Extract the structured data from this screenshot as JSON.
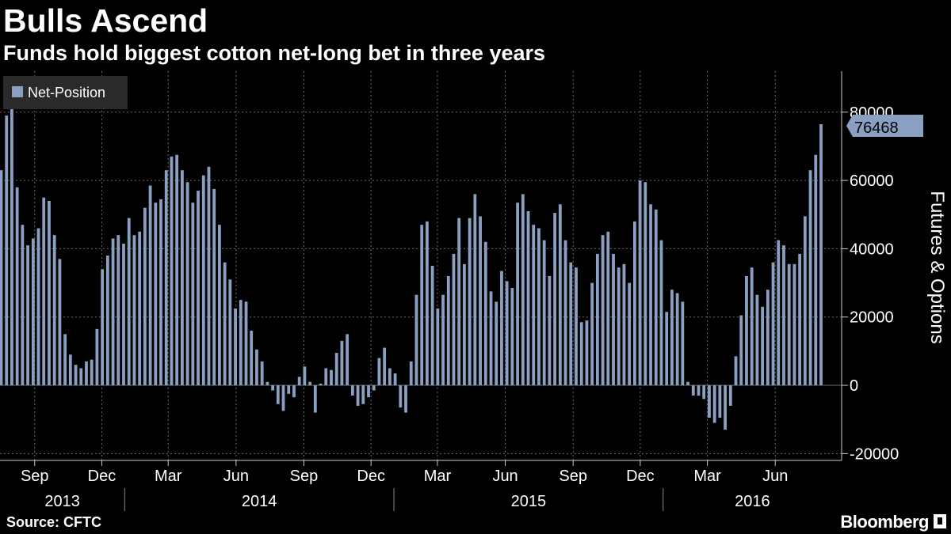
{
  "header": {
    "title": "Bulls Ascend",
    "subtitle": "Funds hold biggest cotton net-long bet in three years"
  },
  "footer": {
    "source": "Source: CFTC",
    "brand": "Bloomberg"
  },
  "colors": {
    "background": "#000000",
    "bar": "#8aa0c2",
    "grid": "#6b6b6b",
    "legend_bg": "#2a2a2a",
    "text": "#ffffff"
  },
  "chart_data": {
    "type": "bar",
    "legend": {
      "position": "top-left",
      "entries": [
        "Net-Position"
      ]
    },
    "ylabel": "Futures & Options",
    "yticks": [
      80000,
      60000,
      40000,
      20000,
      0,
      -20000
    ],
    "ylim": [
      -22000,
      92000
    ],
    "grid": true,
    "last_value_label": "76468",
    "x_ticks": [
      {
        "date": "2013-09-01",
        "label": "Sep"
      },
      {
        "date": "2013-12-01",
        "label": "Dec"
      },
      {
        "date": "2014-03-01",
        "label": "Mar"
      },
      {
        "date": "2014-06-01",
        "label": "Jun"
      },
      {
        "date": "2014-09-01",
        "label": "Sep"
      },
      {
        "date": "2014-12-01",
        "label": "Dec"
      },
      {
        "date": "2015-03-01",
        "label": "Mar"
      },
      {
        "date": "2015-06-01",
        "label": "Jun"
      },
      {
        "date": "2015-09-01",
        "label": "Sep"
      },
      {
        "date": "2015-12-01",
        "label": "Dec"
      },
      {
        "date": "2016-03-01",
        "label": "Mar"
      },
      {
        "date": "2016-06-01",
        "label": "Jun"
      }
    ],
    "year_labels": [
      {
        "year": "2013"
      },
      {
        "year": "2014"
      },
      {
        "year": "2015"
      },
      {
        "year": "2016"
      }
    ],
    "x_start": "2013-07-16",
    "x_end": "2016-08-30",
    "series": [
      {
        "name": "Net-Position",
        "values": [
          63000,
          79000,
          82000,
          58000,
          47000,
          41000,
          43000,
          46000,
          55000,
          54000,
          44000,
          37000,
          15000,
          9000,
          6000,
          5000,
          7000,
          7500,
          16500,
          34000,
          38000,
          43000,
          44000,
          41500,
          49000,
          44000,
          45000,
          52000,
          58500,
          53500,
          54500,
          63000,
          67000,
          67500,
          63000,
          59500,
          53500,
          57000,
          61500,
          64000,
          57500,
          47000,
          36000,
          31000,
          22500,
          25000,
          24500,
          16000,
          10500,
          7000,
          1000,
          -1500,
          -5500,
          -7500,
          -2500,
          -3500,
          2500,
          5500,
          1000,
          -8000,
          500,
          5000,
          4500,
          9500,
          13000,
          15000,
          -3000,
          -6000,
          -5500,
          -3500,
          -1500,
          8000,
          11000,
          5000,
          3500,
          -6500,
          -8000,
          7000,
          26500,
          47000,
          48000,
          35000,
          22500,
          26500,
          32000,
          38500,
          49000,
          35500,
          49000,
          56000,
          49500,
          42000,
          27500,
          24500,
          33500,
          30500,
          28500,
          53500,
          56000,
          51000,
          47000,
          46000,
          42500,
          32000,
          50500,
          53000,
          42500,
          36000,
          34500,
          18500,
          19000,
          30000,
          38500,
          44000,
          45000,
          38500,
          34500,
          35500,
          30000,
          48000,
          60000,
          59500,
          53000,
          51500,
          42500,
          21500,
          28000,
          27000,
          24500,
          1000,
          -3000,
          -3000,
          -4000,
          -9500,
          -11000,
          -9500,
          -13000,
          -6000,
          8500,
          20500,
          32000,
          34500,
          26500,
          23000,
          28000,
          36000,
          42500,
          41000,
          35500,
          35500,
          38500,
          49500,
          63000,
          67500,
          76468
        ]
      }
    ]
  }
}
